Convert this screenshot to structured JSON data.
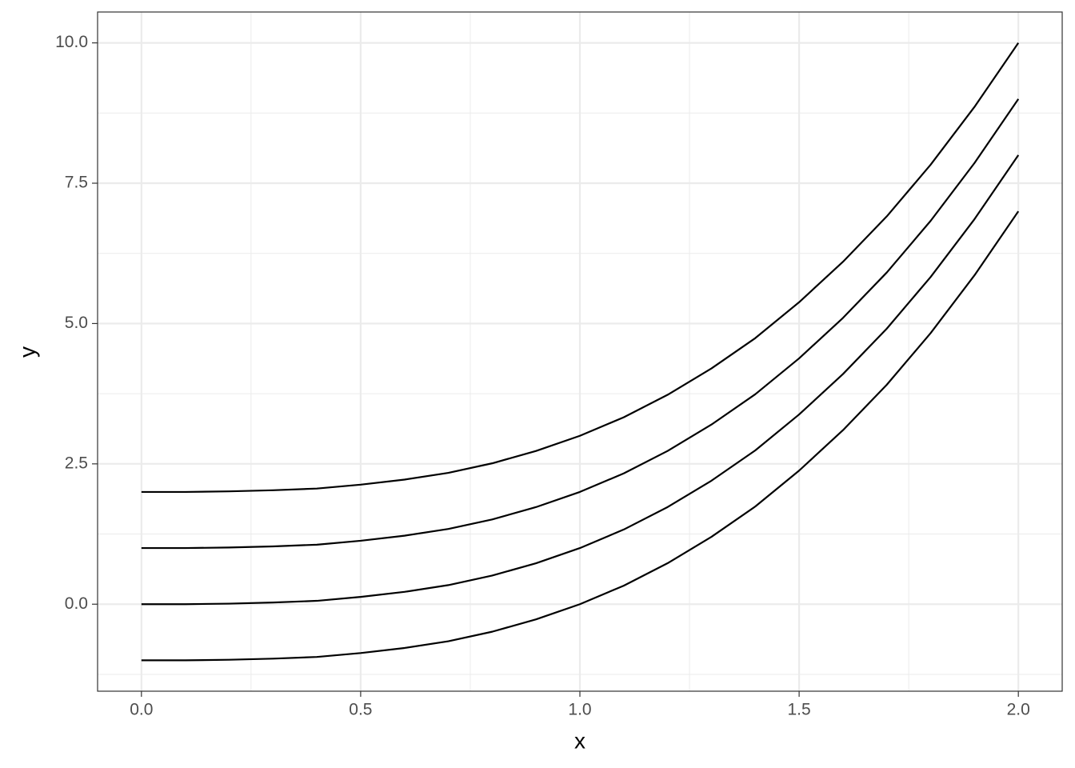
{
  "chart_data": {
    "type": "line",
    "x_label": "x",
    "y_label": "y",
    "x": [
      0,
      0.1,
      0.2,
      0.3,
      0.4,
      0.5,
      0.6,
      0.7,
      0.8,
      0.9,
      1,
      1.1,
      1.2,
      1.3,
      1.4,
      1.5,
      1.6,
      1.7,
      1.8,
      1.9,
      2
    ],
    "series": [
      {
        "color": "#000000",
        "values": [
          2,
          2,
          2.01,
          2.03,
          2.06,
          2.13,
          2.22,
          2.34,
          2.51,
          2.73,
          3,
          3.33,
          3.73,
          4.2,
          4.74,
          5.38,
          6.1,
          6.91,
          7.83,
          8.86,
          10
        ]
      },
      {
        "color": "#000000",
        "values": [
          1,
          1,
          1.01,
          1.03,
          1.06,
          1.13,
          1.22,
          1.34,
          1.51,
          1.73,
          2,
          2.33,
          2.73,
          3.2,
          3.74,
          4.38,
          5.1,
          5.91,
          6.83,
          7.86,
          9
        ]
      },
      {
        "color": "#000000",
        "values": [
          0,
          0,
          0.01,
          0.03,
          0.06,
          0.13,
          0.22,
          0.34,
          0.51,
          0.73,
          1,
          1.33,
          1.73,
          2.2,
          2.74,
          3.38,
          4.1,
          4.91,
          5.83,
          6.86,
          8
        ]
      },
      {
        "color": "#000000",
        "values": [
          -1,
          -1,
          -0.99,
          -0.97,
          -0.94,
          -0.87,
          -0.78,
          -0.66,
          -0.49,
          -0.27,
          0,
          0.33,
          0.73,
          1.2,
          1.74,
          2.38,
          3.1,
          3.91,
          4.83,
          5.86,
          7
        ]
      }
    ],
    "xlim": [
      -0.1,
      2.1
    ],
    "ylim": [
      -1.55,
      10.55
    ],
    "xticks": [
      {
        "value": 0,
        "label": "0.0"
      },
      0.5,
      {
        "value": 1,
        "label": "1.0"
      },
      1.5,
      {
        "value": 2,
        "label": "2.0"
      }
    ],
    "yticks": [
      {
        "value": 0,
        "label": "0.0"
      },
      2.5,
      {
        "value": 5,
        "label": "5.0"
      },
      7.5,
      {
        "value": 10,
        "label": "10.0"
      }
    ],
    "xminor": [
      0.25,
      0.75,
      1.25,
      1.75
    ],
    "yminor": [
      -1.25,
      1.25,
      3.75,
      6.25,
      8.75
    ],
    "grid": true
  }
}
